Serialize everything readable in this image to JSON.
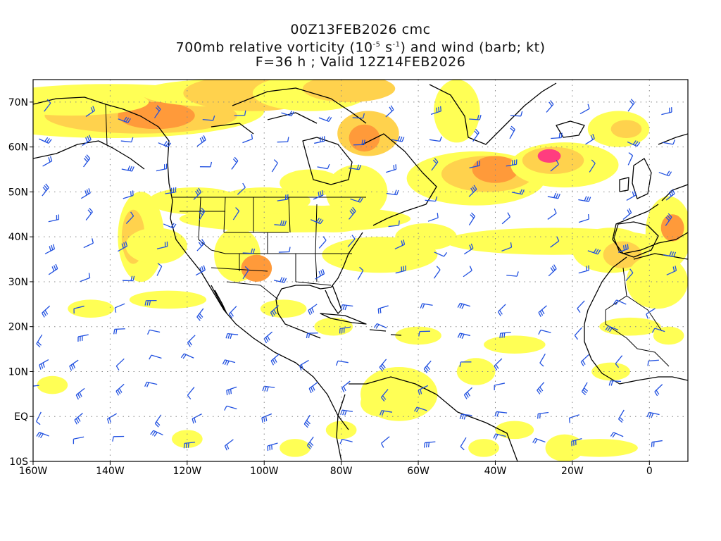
{
  "title": {
    "line1": "00Z13FEB2026 cmc",
    "line2_pre": "700mb relative vorticity (10",
    "line2_exp1": "-5",
    "line2_mid": " s",
    "line2_exp2": "-1",
    "line2_post": ") and wind (barb; kt)",
    "line3": "F=36 h ; Valid 12Z14FEB2026"
  },
  "map": {
    "lon_range": [
      -160,
      10
    ],
    "lat_range": [
      -10,
      75
    ],
    "lon_ticks": [
      "160W",
      "140W",
      "120W",
      "100W",
      "80W",
      "60W",
      "40W",
      "20W",
      "0"
    ],
    "lon_values": [
      -160,
      -140,
      -120,
      -100,
      -80,
      -60,
      -40,
      -20,
      0
    ],
    "lat_ticks": [
      "70N",
      "60N",
      "50N",
      "40N",
      "30N",
      "20N",
      "10N",
      "EQ",
      "10S"
    ],
    "lat_values": [
      70,
      60,
      50,
      40,
      30,
      20,
      10,
      0,
      -10
    ],
    "grid": "dotted",
    "colors": {
      "vort_low": "#ffff55",
      "vort_mid": "#ffd24d",
      "vort_high": "#ff9a3a",
      "vort_max": "#ff3d7f",
      "barb": "#2050e0",
      "coast": "#000000"
    }
  }
}
